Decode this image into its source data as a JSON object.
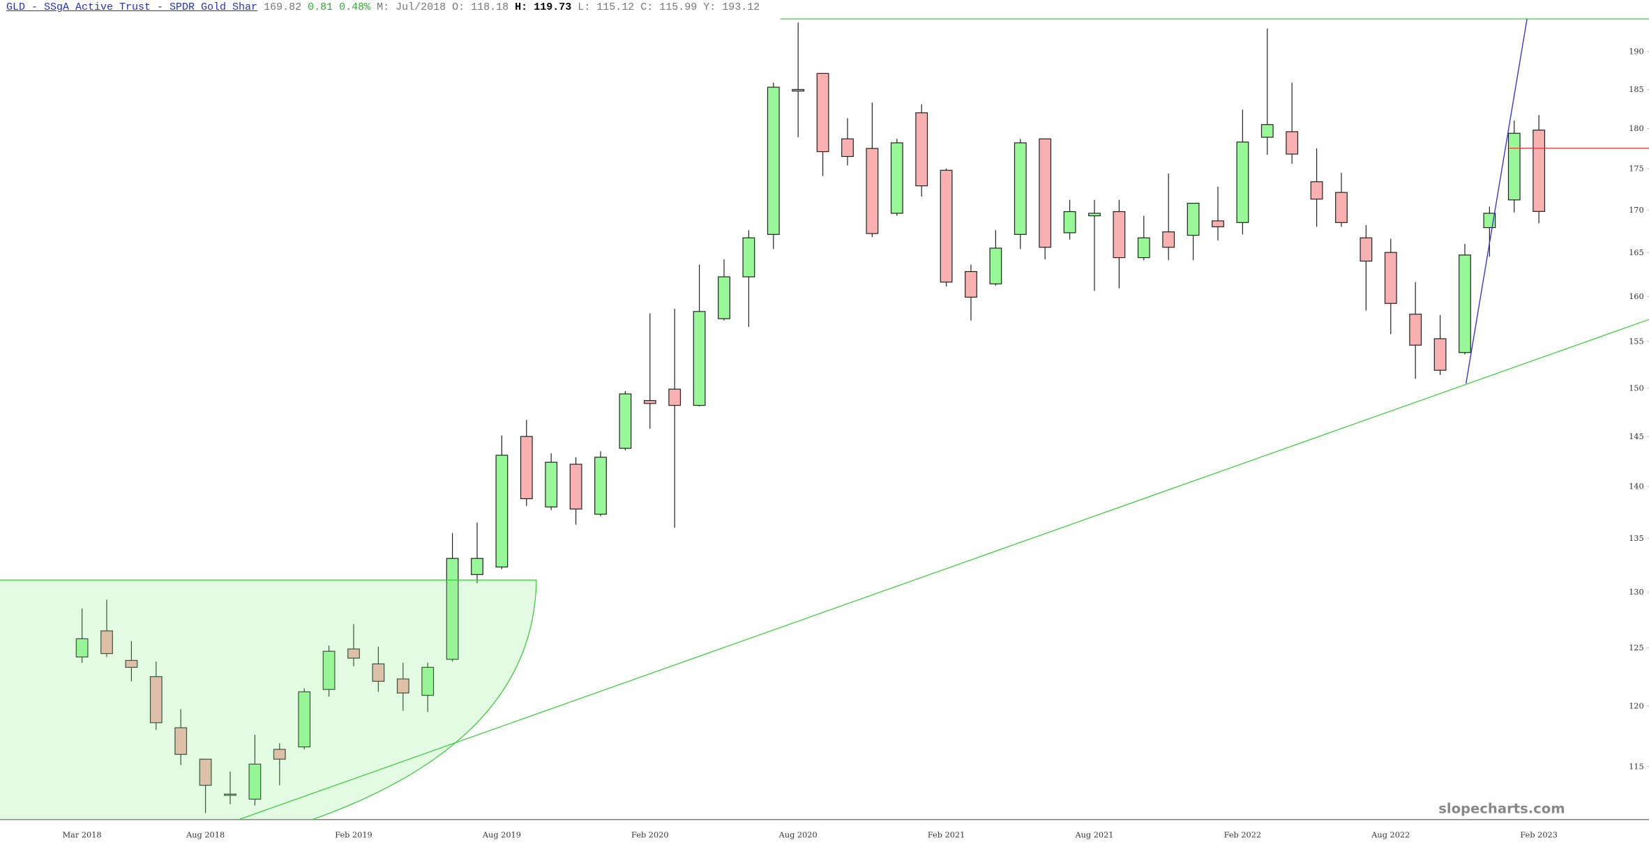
{
  "header": {
    "title": "GLD - SSgA Active Trust - SPDR Gold Shar",
    "change": 0.81,
    "change_pct": "0.48%",
    "period_label": "M:",
    "period": "Jul/2018",
    "o_label": "O:",
    "h_label": "H:",
    "l_label": "L:",
    "c_label": "C:",
    "y_label": "Y:",
    "y_value": 193.12
  },
  "chart_data": {
    "type": "candlestick",
    "watermark": "slopecharts.com",
    "categories": [
      "Mar 2018",
      null,
      null,
      null,
      null,
      "Aug 2018",
      null,
      null,
      null,
      null,
      null,
      "Feb 2019",
      null,
      null,
      null,
      null,
      null,
      "Aug 2019",
      null,
      null,
      null,
      null,
      null,
      "Feb 2020",
      null,
      null,
      null,
      null,
      null,
      "Aug 2020",
      null,
      null,
      null,
      null,
      null,
      "Feb 2021",
      null,
      null,
      null,
      null,
      null,
      "Aug 2021",
      null,
      null,
      null,
      null,
      null,
      "Feb 2022",
      null,
      null,
      null,
      null,
      null,
      "Aug 2022",
      null,
      null,
      null,
      null,
      null,
      "Feb 2023"
    ],
    "open": [
      124.2,
      126.5,
      123.9,
      122.5,
      118.18,
      115.6,
      112.7,
      112.4,
      116.4,
      116.6,
      121.4,
      124.9,
      123.6,
      122.3,
      120.9,
      124.0,
      131.6,
      132.3,
      145.0,
      138.0,
      142.2,
      137.3,
      143.8,
      148.7,
      149.9,
      148.2,
      157.5,
      162.2,
      167.1,
      185.0,
      187.1,
      178.7,
      177.5,
      169.6,
      182.0,
      174.8,
      162.8,
      161.4,
      167.1,
      178.7,
      167.3,
      169.3,
      169.8,
      164.4,
      167.4,
      167.0,
      168.7,
      168.5,
      178.9,
      179.6,
      173.4,
      172.1,
      166.7,
      165.0,
      158.0,
      155.3,
      153.8,
      167.9,
      171.2,
      179.8
    ],
    "high": [
      128.5,
      129.3,
      125.6,
      123.8,
      119.73,
      115.6,
      114.6,
      117.6,
      116.9,
      121.5,
      125.2,
      127.1,
      125.1,
      123.7,
      123.7,
      135.5,
      136.5,
      145.1,
      146.7,
      143.3,
      142.9,
      143.5,
      149.7,
      158.1,
      158.6,
      163.6,
      164.2,
      167.6,
      185.9,
      193.9,
      187.1,
      181.3,
      183.3,
      178.7,
      183.1,
      175.0,
      163.6,
      167.6,
      178.7,
      178.7,
      171.2,
      171.2,
      171.2,
      169.3,
      174.4,
      170.8,
      172.8,
      182.4,
      193.1,
      185.9,
      177.5,
      174.5,
      168.2,
      166.6,
      161.6,
      157.9,
      166.0,
      170.4,
      181.0,
      181.7
    ],
    "low": [
      123.7,
      124.2,
      122.1,
      118.0,
      115.12,
      111.3,
      112.0,
      111.9,
      113.5,
      116.4,
      120.8,
      123.4,
      121.2,
      119.6,
      119.5,
      123.8,
      130.8,
      132.1,
      138.1,
      137.7,
      136.3,
      137.1,
      143.6,
      145.8,
      136.0,
      148.1,
      157.3,
      156.6,
      165.4,
      178.9,
      174.1,
      175.4,
      166.8,
      169.3,
      171.6,
      161.1,
      157.3,
      161.2,
      165.4,
      164.2,
      166.5,
      160.6,
      160.9,
      164.1,
      164.1,
      164.1,
      166.4,
      167.1,
      176.7,
      175.6,
      168.0,
      168.0,
      158.4,
      155.8,
      151.0,
      151.4,
      153.6,
      164.5,
      169.7,
      168.4
    ],
    "close": [
      125.8,
      124.5,
      123.3,
      118.6,
      115.99,
      113.5,
      112.8,
      115.2,
      115.6,
      121.2,
      124.7,
      124.1,
      122.1,
      121.1,
      123.3,
      133.1,
      133.1,
      143.1,
      138.8,
      142.4,
      137.8,
      142.9,
      149.4,
      148.4,
      148.2,
      158.3,
      162.2,
      166.7,
      185.3,
      184.8,
      177.1,
      176.5,
      167.2,
      178.2,
      172.9,
      161.6,
      159.9,
      165.5,
      178.2,
      165.6,
      169.8,
      169.6,
      164.4,
      166.7,
      165.6,
      170.8,
      168.0,
      178.3,
      180.5,
      176.8,
      171.3,
      168.5,
      164.0,
      159.2,
      154.6,
      151.9,
      164.7,
      169.6,
      179.4,
      169.82
    ],
    "up_color": "#98f898",
    "down_color": "#f9b0b0",
    "ylim": [
      110.8,
      194.4
    ],
    "yscale": "log",
    "yticks": [
      115,
      120,
      125,
      130,
      135,
      140,
      145,
      150,
      155,
      160,
      165,
      170,
      175,
      180,
      185,
      190
    ]
  }
}
